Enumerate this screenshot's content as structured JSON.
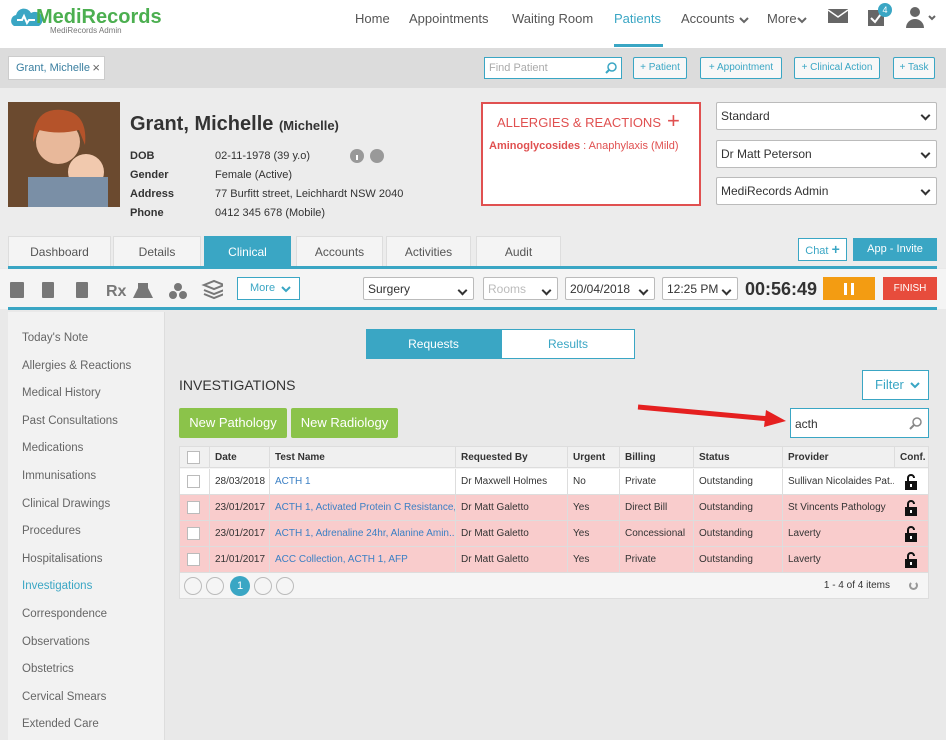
{
  "header": {
    "logo": "MediRecords",
    "logo_sub": "MediRecords Admin",
    "nav": [
      "Home",
      "Appointments",
      "Waiting Room",
      "Patients",
      "Accounts",
      "More"
    ],
    "tasks_badge": "4"
  },
  "toolbar": {
    "patient_chip": "Grant, Michelle",
    "find_patient": "Find Patient",
    "buttons": [
      "+ Patient",
      "+ Appointment",
      "+ Clinical Action",
      "+ Task"
    ]
  },
  "patient": {
    "name": "Grant, Michelle",
    "preferred": "(Michelle)",
    "fields": [
      {
        "label": "DOB",
        "value": "02-11-1978 (39 y.o)"
      },
      {
        "label": "Gender",
        "value": "Female (Active)"
      },
      {
        "label": "Address",
        "value": "77 Burfitt street, Leichhardt NSW 2040"
      },
      {
        "label": "Phone",
        "value": "0412 345 678 (Mobile)"
      }
    ]
  },
  "allergies": {
    "title": "ALLERGIES & REACTIONS",
    "items": [
      {
        "substance": "Aminoglycosides",
        "reaction": ": Anaphylaxis (Mild)"
      }
    ]
  },
  "selects": [
    "Standard",
    "Dr Matt Peterson",
    "MediRecords Admin"
  ],
  "tabs": [
    "Dashboard",
    "Details",
    "Clinical",
    "Accounts",
    "Activities",
    "Audit"
  ],
  "tab_buttons": [
    "Chat",
    "App - Invite"
  ],
  "clinical_bar": {
    "more": "More",
    "location": "Surgery",
    "rooms": "Rooms",
    "date": "20/04/2018",
    "time": "12:25 PM",
    "timer": "00:56:49",
    "finish": "FINISH"
  },
  "sidebar": [
    "Today's Note",
    "Allergies & Reactions",
    "Medical History",
    "Past Consultations",
    "Medications",
    "Immunisations",
    "Clinical Drawings",
    "Procedures",
    "Hospitalisations",
    "Investigations",
    "Correspondence",
    "Observations",
    "Obstetrics",
    "Cervical Smears",
    "Extended Care"
  ],
  "main": {
    "toggle": [
      "Requests",
      "Results"
    ],
    "title": "INVESTIGATIONS",
    "filter": "Filter",
    "new_buttons": [
      "New Pathology",
      "New Radiology"
    ],
    "search": "acth"
  },
  "table": {
    "columns": [
      "Date",
      "Test Name",
      "Requested By",
      "Urgent",
      "Billing",
      "Status",
      "Provider",
      "Conf."
    ],
    "rows": [
      [
        "28/03/2018",
        "ACTH 1",
        "Dr Maxwell Holmes",
        "No",
        "Private",
        "Outstanding",
        "Sullivan Nicolaides Pat..."
      ],
      [
        "23/01/2017",
        "ACTH 1, Activated Protein C Resistance, ...",
        "Dr Matt Galetto",
        "Yes",
        "Direct Bill",
        "Outstanding",
        "St Vincents Pathology"
      ],
      [
        "23/01/2017",
        "ACTH 1, Adrenaline 24hr, Alanine Amin...",
        "Dr Matt Galetto",
        "Yes",
        "Concessional",
        "Outstanding",
        "Laverty"
      ],
      [
        "21/01/2017",
        "ACC Collection, ACTH 1, AFP",
        "Dr Matt Galetto",
        "Yes",
        "Private",
        "Outstanding",
        "Laverty"
      ]
    ],
    "page": "1",
    "summary": "1 - 4 of 4 items"
  }
}
